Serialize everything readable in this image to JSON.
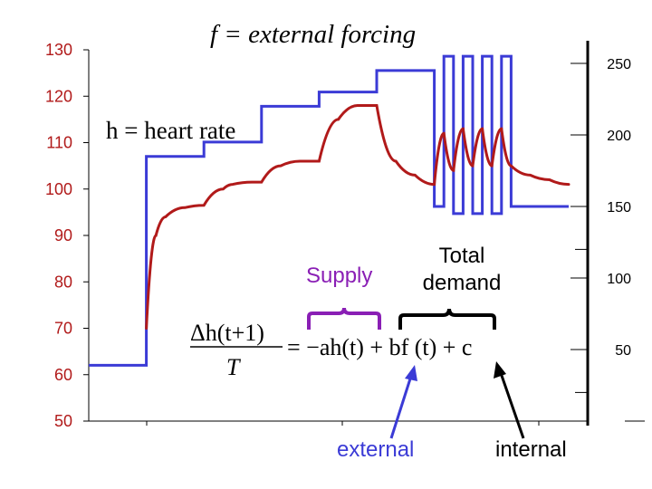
{
  "chart_data": {
    "type": "line",
    "title": "f = external forcing",
    "left_axis": {
      "label": "h = heart rate",
      "ticks": [
        130,
        120,
        110,
        100,
        90,
        80,
        70,
        60,
        50
      ],
      "ylim": [
        50,
        130
      ]
    },
    "right_axis": {
      "ticks": [
        250,
        200,
        150,
        100,
        50
      ],
      "ylim": [
        0,
        250
      ]
    },
    "series": [
      {
        "name": "f = external forcing",
        "color": "#3b3bd6",
        "axis": "right",
        "x": [
          0,
          12,
          12,
          24,
          24,
          36,
          36,
          48,
          48,
          60,
          60,
          72,
          72,
          74,
          74,
          76,
          76,
          78,
          78,
          80,
          80,
          82,
          82,
          84,
          84,
          86,
          86,
          88,
          88,
          100
        ],
        "values": [
          39,
          39,
          185,
          185,
          195,
          195,
          220,
          220,
          230,
          230,
          245,
          245,
          150,
          150,
          255,
          255,
          145,
          145,
          255,
          255,
          145,
          145,
          255,
          255,
          145,
          145,
          255,
          255,
          150,
          150
        ]
      },
      {
        "name": "h = heart rate",
        "color": "#b11a1a",
        "axis": "left",
        "x": [
          12,
          14,
          16,
          20,
          24,
          28,
          30,
          34,
          36,
          40,
          44,
          48,
          52,
          56,
          60,
          64,
          68,
          72,
          74,
          76,
          78,
          80,
          82,
          84,
          86,
          88,
          92,
          96,
          100
        ],
        "values": [
          70,
          90,
          94,
          96,
          96.5,
          100,
          101,
          101.5,
          101.5,
          105,
          106,
          106,
          115,
          118,
          118,
          106,
          103,
          101,
          112,
          104,
          113,
          105,
          113,
          105,
          113,
          105,
          103,
          102,
          101
        ]
      }
    ],
    "equation": {
      "lhs_numerator": "Δh(t+1)",
      "lhs_denominator": "T",
      "rhs": "= −ah(t) + bf (t) + c"
    },
    "annotations": {
      "supply": "Supply",
      "total_demand_line1": "Total",
      "total_demand_line2": "demand",
      "external": "external",
      "internal": "internal"
    },
    "colors": {
      "forcing": "#3b3bd6",
      "heart_rate": "#b11a1a",
      "supply_brace": "#8a1fb5",
      "left_ticks": "#b11a1a"
    }
  }
}
